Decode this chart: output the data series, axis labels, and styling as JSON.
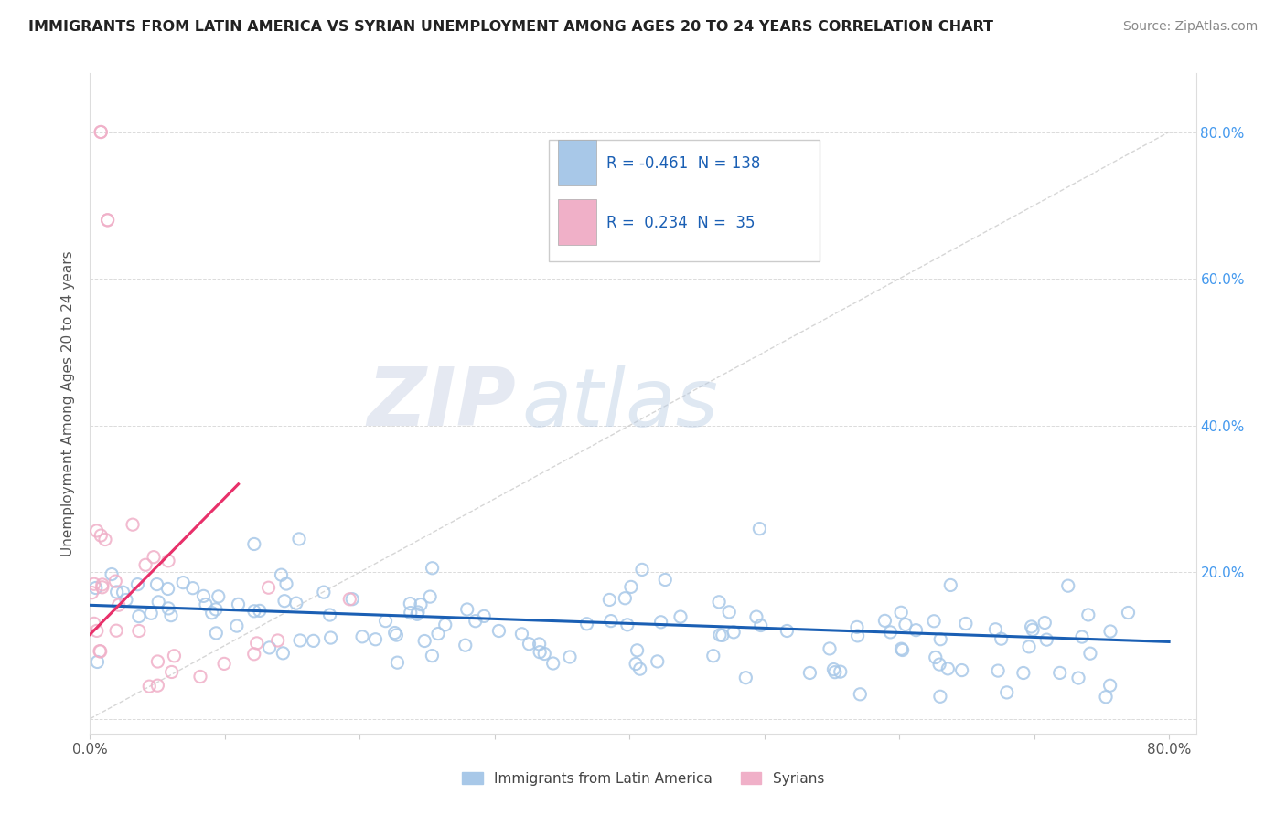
{
  "title": "IMMIGRANTS FROM LATIN AMERICA VS SYRIAN UNEMPLOYMENT AMONG AGES 20 TO 24 YEARS CORRELATION CHART",
  "source": "Source: ZipAtlas.com",
  "ylabel": "Unemployment Among Ages 20 to 24 years",
  "xlim": [
    0.0,
    0.82
  ],
  "ylim": [
    -0.02,
    0.88
  ],
  "R1": -0.461,
  "N1": 138,
  "R2": 0.234,
  "N2": 35,
  "legend1_label": "Immigrants from Latin America",
  "legend2_label": "Syrians",
  "blue_color": "#a8c8e8",
  "pink_color": "#f0b0c8",
  "blue_line_color": "#1a5fb4",
  "pink_line_color": "#e8306a",
  "dashed_color": "#cccccc",
  "watermark_zip": "ZIP",
  "watermark_atlas": "atlas",
  "background_color": "#ffffff",
  "grid_color": "#cccccc",
  "title_color": "#222222",
  "source_color": "#888888",
  "right_axis_color": "#4499ee",
  "legend_text_color": "#1a5fb4",
  "legend_R_color": "#e8306a"
}
